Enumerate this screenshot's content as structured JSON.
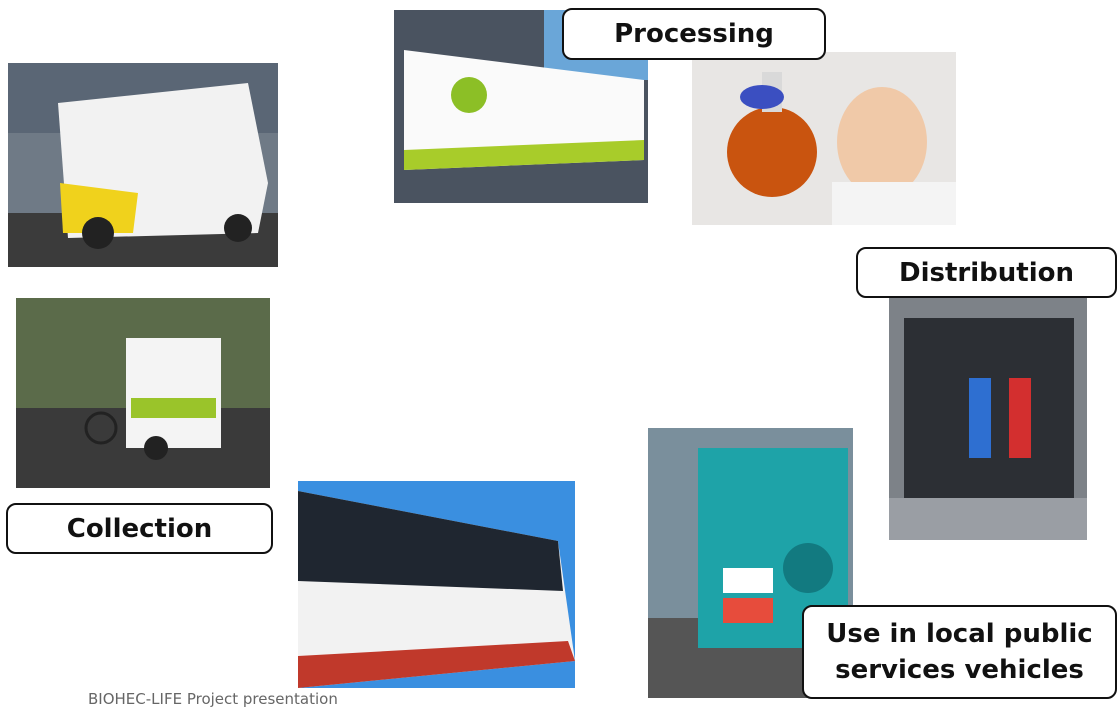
{
  "slide": {
    "labels": {
      "processing": "Processing",
      "distribution": "Distribution",
      "collection": "Collection",
      "use": [
        "Use in local public",
        "services vehicles"
      ]
    },
    "footer": "BIOHEC-LIFE Project presentation"
  }
}
